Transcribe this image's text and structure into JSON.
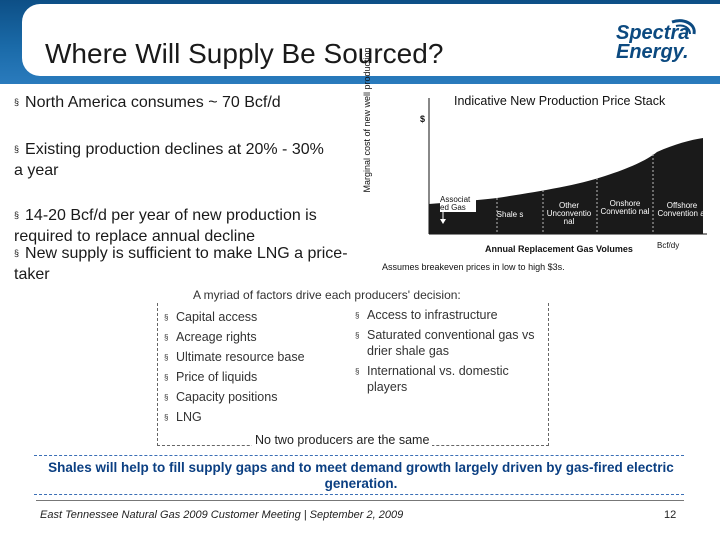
{
  "slide": {
    "title": "Where Will Supply Be Sourced?",
    "logo_line1": "Spectra",
    "logo_line2": "Energy."
  },
  "bullets": [
    {
      "text": "North America consumes ~ 70 Bcf/d"
    },
    {
      "text": "Existing production declines at 20% - 30% a year"
    },
    {
      "text": "14-20 Bcf/d per year of new production is required to replace annual decline"
    },
    {
      "text": "New supply is sufficient to make LNG a price-taker"
    }
  ],
  "chart": {
    "title": "Indicative New Production Price Stack",
    "ylabel": "Marginal cost of new well production",
    "y_marker": "$",
    "xlabel": "Annual Replacement Gas Volumes",
    "unit": "Bcf/dy",
    "note": "Assumes breakeven prices in low to high $3s.",
    "segments": [
      "Associat ed Gas",
      "Shale s",
      "Other Unconventio nal",
      "Onshore Conventio nal",
      "Offshore Convention al"
    ]
  },
  "chart_data": {
    "type": "area",
    "title": "Indicative New Production Price Stack",
    "xlabel": "Annual Replacement Gas Volumes",
    "ylabel": "Marginal cost of new well production",
    "categories": [
      "Associat ed Gas",
      "Shale s",
      "Other Unconventio nal",
      "Onshore Conventio nal",
      "Offshore Convention al"
    ],
    "color": "#1a1a1a"
  },
  "factors": {
    "title": "A myriad of factors drive each producers' decision:",
    "left": [
      "Capital access",
      "Acreage rights",
      "Ultimate resource base",
      "Price of liquids",
      "Capacity positions",
      "LNG"
    ],
    "right": [
      "Access to infrastructure",
      "Saturated conventional gas vs drier shale gas",
      "International vs. domestic players"
    ],
    "footer": "No two producers are the same"
  },
  "summary": "Shales will help to fill supply gaps and to meet demand growth largely driven by gas-fired electric generation.",
  "footer": {
    "text": "East Tennessee Natural Gas 2009 Customer Meeting | September 2, 2009",
    "page": "12"
  }
}
